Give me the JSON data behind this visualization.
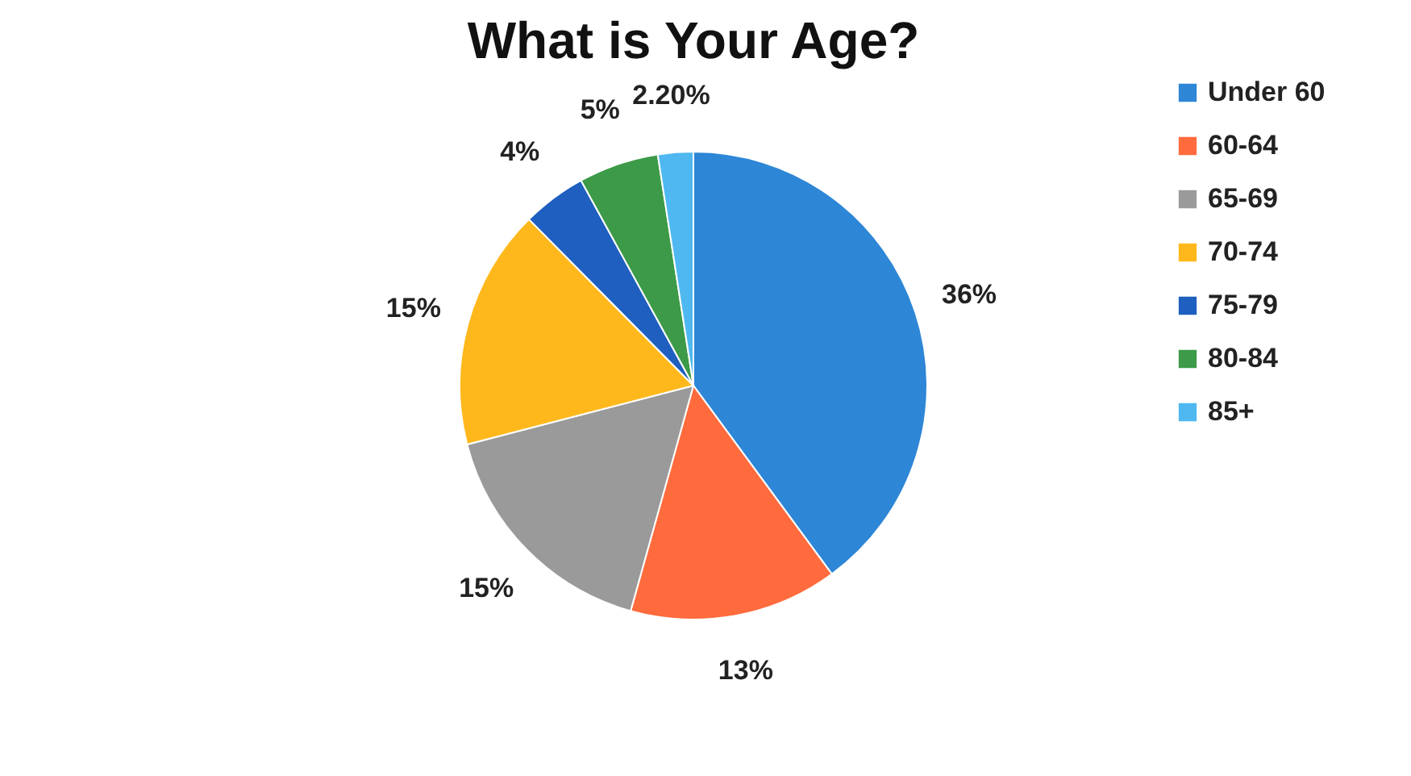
{
  "chart_data": {
    "type": "pie",
    "title": "What is Your Age?",
    "categories": [
      "Under 60",
      "60-64",
      "65-69",
      "70-74",
      "75-79",
      "80-84",
      "85+"
    ],
    "values": [
      36,
      13,
      15,
      15,
      4,
      5,
      2.2
    ],
    "value_labels": [
      "36%",
      "13%",
      "15%",
      "15%",
      "4%",
      "5%",
      "2.20%"
    ],
    "colors": [
      "#2e86d6",
      "#ff6b3d",
      "#9a9a9a",
      "#ffb81c",
      "#1f5fbf",
      "#3c9a48",
      "#4fb8f0"
    ],
    "legend": "right"
  }
}
